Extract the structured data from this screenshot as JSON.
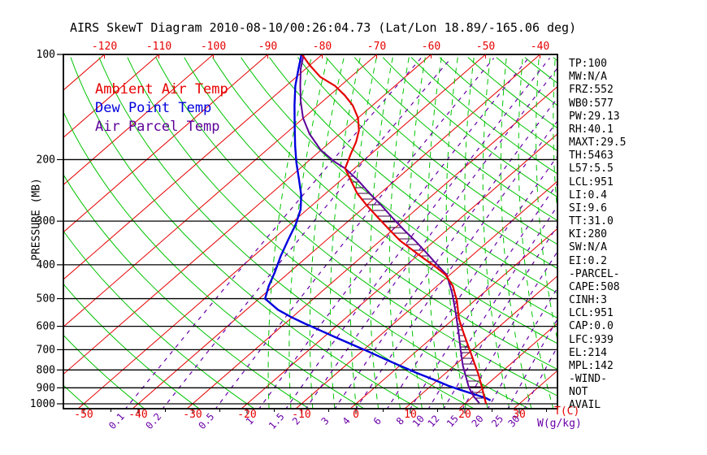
{
  "chart_data": {
    "type": "line",
    "title": "AIRS SkewT Diagram 2010-08-10/00:26:04.73 (Lat/Lon 18.89/-165.06 deg)",
    "ylabel": "PRESSURE (MB)",
    "xlabel_t": "T(C)",
    "xlabel_w": "W(g/kg)",
    "legend": [
      {
        "label": "Ambient Air Temp",
        "color": "#e60000"
      },
      {
        "label": "Dew Point Temp",
        "color": "#0000dd"
      },
      {
        "label": "Air Parcel Temp",
        "color": "#5c0099"
      }
    ],
    "pressure_ticks_mb": [
      100,
      200,
      300,
      400,
      500,
      600,
      700,
      800,
      900,
      1000
    ],
    "temp_ticks_top_c": [
      -120,
      -110,
      -100,
      -90,
      -80,
      -70,
      -60,
      -50,
      -40
    ],
    "temp_ticks_bottom_c": [
      -50,
      -40,
      -30,
      -20,
      -10,
      0,
      10,
      20,
      30
    ],
    "mixing_ratio_ticks_gkg": [
      0.1,
      0.2,
      0.5,
      1,
      1.5,
      2,
      3,
      4,
      6,
      8,
      10,
      12,
      15,
      20,
      25,
      30
    ],
    "grid": {
      "isotherms_c": {
        "min": -160,
        "max": 40,
        "step": 10,
        "color": "#e60000"
      },
      "dry_adiabats_c": {
        "min": -60,
        "max": 180,
        "step": 10,
        "color": "#00c400"
      },
      "moist_adiabats_c": {
        "min": -16,
        "max": 44,
        "step": 4,
        "color": "#00c400"
      },
      "mixing_color": "#6a00a8"
    },
    "axis_ranges": {
      "pressure_mb": [
        100,
        1050
      ],
      "skew": "45deg-right"
    },
    "series": [
      {
        "name": "Ambient Air Temp",
        "color": "#e60000",
        "points_p_t": [
          [
            100,
            -83.7
          ],
          [
            107,
            -80.2
          ],
          [
            116,
            -75.6
          ],
          [
            123,
            -71.0
          ],
          [
            131,
            -67.2
          ],
          [
            140,
            -63.6
          ],
          [
            152,
            -60.0
          ],
          [
            165,
            -57.2
          ],
          [
            178,
            -55.3
          ],
          [
            193,
            -53.7
          ],
          [
            212,
            -51.7
          ],
          [
            229,
            -48.2
          ],
          [
            250,
            -44.2
          ],
          [
            272,
            -39.6
          ],
          [
            293,
            -35.3
          ],
          [
            316,
            -30.9
          ],
          [
            341,
            -26.4
          ],
          [
            363,
            -22.1
          ],
          [
            385,
            -18.0
          ],
          [
            406,
            -14.2
          ],
          [
            428,
            -10.7
          ],
          [
            460,
            -7.1
          ],
          [
            506,
            -3.3
          ],
          [
            570,
            0.9
          ],
          [
            627,
            4.8
          ],
          [
            691,
            8.9
          ],
          [
            762,
            13.0
          ],
          [
            828,
            16.5
          ],
          [
            898,
            19.7
          ],
          [
            958,
            22.2
          ],
          [
            1000,
            23.9
          ]
        ]
      },
      {
        "name": "Dew Point Temp",
        "color": "#0000dd",
        "points_p_t": [
          [
            100,
            -83.8
          ],
          [
            110,
            -81.3
          ],
          [
            123,
            -78.3
          ],
          [
            140,
            -74.3
          ],
          [
            160,
            -70.0
          ],
          [
            183,
            -65.6
          ],
          [
            204,
            -61.9
          ],
          [
            227,
            -58.0
          ],
          [
            253,
            -54.1
          ],
          [
            278,
            -51.2
          ],
          [
            306,
            -49.0
          ],
          [
            339,
            -47.1
          ],
          [
            378,
            -45.0
          ],
          [
            420,
            -42.7
          ],
          [
            460,
            -40.9
          ],
          [
            500,
            -38.9
          ],
          [
            538,
            -34.2
          ],
          [
            564,
            -30.3
          ],
          [
            589,
            -26.4
          ],
          [
            615,
            -22.3
          ],
          [
            645,
            -17.8
          ],
          [
            676,
            -13.3
          ],
          [
            709,
            -8.7
          ],
          [
            744,
            -4.2
          ],
          [
            780,
            0.3
          ],
          [
            818,
            4.9
          ],
          [
            853,
            9.2
          ],
          [
            890,
            13.4
          ],
          [
            919,
            17.1
          ],
          [
            943,
            20.2
          ],
          [
            963,
            22.7
          ],
          [
            978,
            24.0
          ]
        ]
      },
      {
        "name": "Air Parcel Temp",
        "color": "#5c0099",
        "points_p_t": [
          [
            100,
            -83.4
          ],
          [
            110,
            -80.9
          ],
          [
            123,
            -77.4
          ],
          [
            136,
            -74.1
          ],
          [
            152,
            -70.1
          ],
          [
            169,
            -65.5
          ],
          [
            188,
            -60.0
          ],
          [
            203,
            -55.0
          ],
          [
            212,
            -51.7
          ],
          [
            229,
            -46.9
          ],
          [
            250,
            -41.9
          ],
          [
            272,
            -36.9
          ],
          [
            295,
            -32.3
          ],
          [
            318,
            -27.9
          ],
          [
            343,
            -23.3
          ],
          [
            370,
            -18.9
          ],
          [
            399,
            -14.6
          ],
          [
            427,
            -10.6
          ],
          [
            481,
            -5.8
          ],
          [
            549,
            -0.9
          ],
          [
            627,
            3.9
          ],
          [
            706,
            8.1
          ],
          [
            778,
            11.6
          ],
          [
            837,
            14.5
          ],
          [
            898,
            17.3
          ],
          [
            953,
            20.1
          ],
          [
            995,
            22.5
          ]
        ]
      }
    ],
    "stats_panel": [
      "TP:100",
      "MW:N/A",
      "FRZ:552",
      "WB0:577",
      "PW:29.13",
      "RH:40.1",
      "MAXT:29.5",
      "TH:5463",
      "L57:5.5",
      "LCL:951",
      "LI:0.4",
      "SI:9.6",
      "TT:31.0",
      "KI:280",
      "SW:N/A",
      "EI:0.2",
      "-PARCEL-",
      "CAPE:508",
      "CINH:3",
      "LCL:951",
      "CAP:0.0",
      "LFC:939",
      "EL:214",
      "MPL:142",
      "-WIND-",
      "NOT",
      "AVAIL"
    ]
  }
}
